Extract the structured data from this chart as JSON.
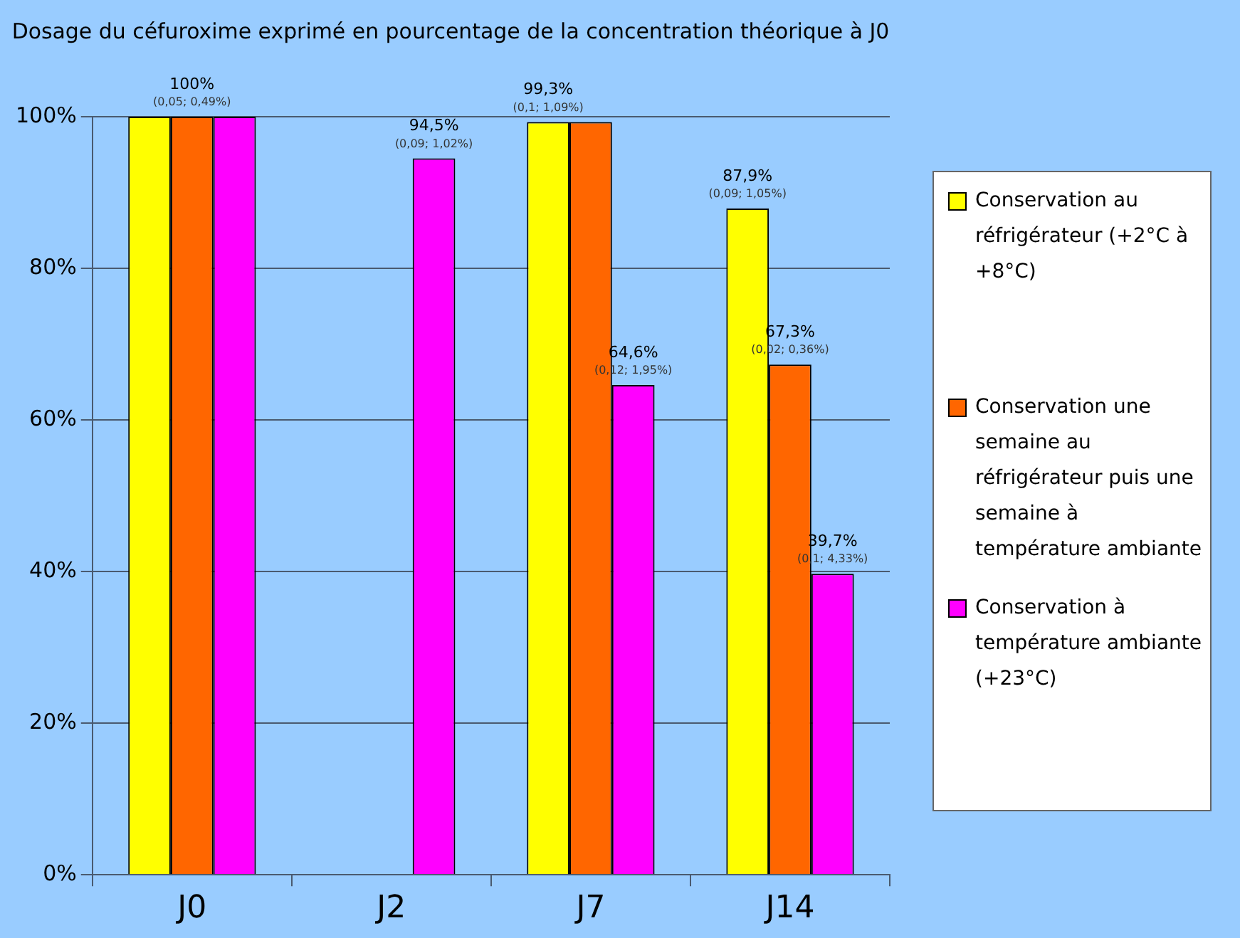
{
  "chart_data": {
    "type": "bar",
    "title": "Dosage du céfuroxime exprimé en pourcentage de la concentration théorique à J0",
    "categories": [
      "J0",
      "J2",
      "J7",
      "J14"
    ],
    "series": [
      {
        "name": "Conservation au réfrigérateur (+2°C à +8°C)",
        "color": "#ffff00",
        "values": [
          100,
          null,
          99.3,
          87.9
        ],
        "value_labels": [
          null,
          null,
          "99,3%\n(0,1; 1,09%)",
          "87,9%\n(0,09; 1,05%)"
        ]
      },
      {
        "name": "Conservation une semaine au réfrigérateur puis une semaine à température ambiante",
        "color": "#ff6600",
        "values": [
          100,
          null,
          99.3,
          67.3
        ],
        "value_labels": [
          "100%\n(0,05; 0,49%)",
          null,
          null,
          "67,3%\n(0,02; 0,36%)"
        ]
      },
      {
        "name": "Conservation à température ambiante (+23°C)",
        "color": "#ff00ff",
        "values": [
          100,
          94.5,
          64.6,
          39.7
        ],
        "value_labels": [
          null,
          "94,5%\n(0,09; 1,02%)",
          "64,6%\n(0,12; 1,95%)",
          "39,7%\n(0,1; 4,33%)"
        ]
      }
    ],
    "ylim": [
      0,
      100
    ],
    "yticks": [
      {
        "value": 0,
        "label": "0%"
      },
      {
        "value": 20,
        "label": "20%"
      },
      {
        "value": 40,
        "label": "40%"
      },
      {
        "value": 60,
        "label": "60%"
      },
      {
        "value": 80,
        "label": "80%"
      },
      {
        "value": 100,
        "label": "100%"
      }
    ],
    "grid": "y",
    "legend": "right"
  }
}
